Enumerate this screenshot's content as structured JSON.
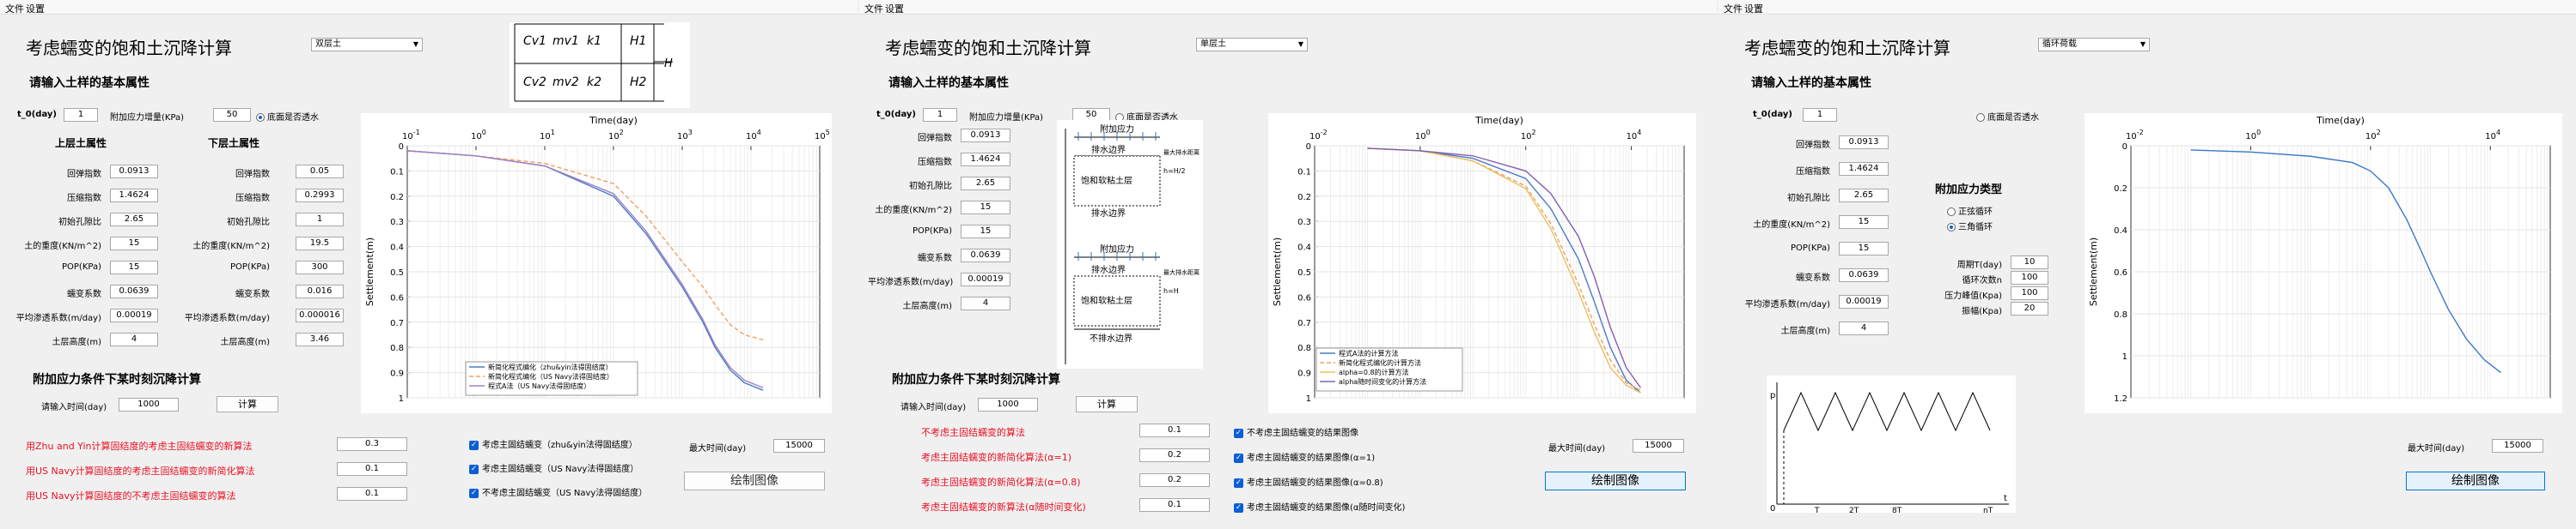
{
  "menu": [
    "文件",
    "设置"
  ],
  "p1": {
    "title": "考虑蠕变的饱和土沉降计算",
    "layer_select": "双层土",
    "sec_props": "请输入土样的基本属性",
    "t0_label": "t_0(day)",
    "t0": "1",
    "load_label": "附加应力增量(KPa)",
    "load": "50",
    "drain_label": "底面是否透水",
    "upper_hd": "上层土属性",
    "lower_hd": "下层土属性",
    "upper": [
      [
        "回弹指数",
        "0.0913"
      ],
      [
        "压缩指数",
        "1.4624"
      ],
      [
        "初始孔隙比",
        "2.65"
      ],
      [
        "土的重度(KN/m^2)",
        "15"
      ],
      [
        "POP(KPa)",
        "15"
      ],
      [
        "蠕变系数",
        "0.0639"
      ],
      [
        "平均渗透系数(m/day)",
        "0.00019"
      ],
      [
        "土层高度(m)",
        "4"
      ]
    ],
    "lower": [
      [
        "回弹指数",
        "0.05"
      ],
      [
        "压缩指数",
        "0.2993"
      ],
      [
        "初始孔隙比",
        "1"
      ],
      [
        "土的重度(KN/m^2)",
        "19.5"
      ],
      [
        "POP(KPa)",
        "300"
      ],
      [
        "蠕变系数",
        "0.016"
      ],
      [
        "平均渗透系数(m/day)",
        "0.000016"
      ],
      [
        "土层高度(m)",
        "3.46"
      ]
    ],
    "sec_time": "附加应力条件下某时刻沉降计算",
    "time_label": "请输入时间(day)",
    "time": "1000",
    "calc": "计算",
    "results": [
      [
        "用Zhu and Yin计算固结度的考虑主固结蠕变的新算法",
        "0.3"
      ],
      [
        "用US Navy计算固结度的考虑主固结蠕变的新简化算法",
        "0.1"
      ],
      [
        "用US Navy计算固结度的不考虑主固结蠕变的算法",
        "0.1"
      ]
    ],
    "checks": [
      "考虑主固结蠕变（zhu&yin法得固结度）",
      "考虑主固结蠕变（US Navy法得固结度）",
      "不考虑主固结蠕变（US Navy法得固结度）"
    ],
    "maxtime_label": "最大时间(day)",
    "maxtime": "15000",
    "draw": "绘制图像",
    "legend": [
      "新简化程式编化（zhu&yin法得固结度）",
      "新简化程式编化（US Navy法得固结度）",
      "程式A法（US Navy法得固结度）"
    ],
    "diagram": {
      "cv1": "Cv1",
      "mv1": "mv1",
      "k1": "k1",
      "h1": "H1",
      "cv2": "Cv2",
      "mv2": "mv2",
      "k2": "k2",
      "h2": "H2",
      "h": "H"
    }
  },
  "p2": {
    "title": "考虑蠕变的饱和土沉降计算",
    "layer_select": "单层土",
    "sec_props": "请输入土样的基本属性",
    "t0_label": "t_0(day)",
    "t0": "1",
    "load_label": "附加应力增量(KPa)",
    "load": "50",
    "drain_label": "底面是否透水",
    "props": [
      [
        "回弹指数",
        "0.0913"
      ],
      [
        "压缩指数",
        "1.4624"
      ],
      [
        "初始孔隙比",
        "2.65"
      ],
      [
        "土的重度(KN/m^2)",
        "15"
      ],
      [
        "POP(KPa)",
        "15"
      ],
      [
        "蠕变系数",
        "0.0639"
      ],
      [
        "平均渗透系数(m/day)",
        "0.00019"
      ],
      [
        "土层高度(m)",
        "4"
      ]
    ],
    "sec_time": "附加应力条件下某时刻沉降计算",
    "time_label": "请输入时间(day)",
    "time": "1000",
    "calc": "计算",
    "results": [
      [
        "不考虑主固结蠕变的算法",
        "0.1"
      ],
      [
        "考虑主固结蠕变的新简化算法(α=1)",
        "0.2"
      ],
      [
        "考虑主固结蠕变的新简化算法(α=0.8)",
        "0.2"
      ],
      [
        "考虑主固结蠕变的新算法(α随时间变化)",
        "0.1"
      ]
    ],
    "checks": [
      "不考虑主固结蠕变的结果图像",
      "考虑主固结蠕变的结果图像(α=1)",
      "考虑主固结蠕变的结果图像(α=0.8)",
      "考虑主固结蠕变的结果图像(α随时间变化)"
    ],
    "maxtime_label": "最大时间(day)",
    "maxtime": "15000",
    "draw": "绘制图像",
    "legend": [
      "程式A法的计算方法",
      "新简化程式编化的计算方法",
      "alpha=0.8的计算方法",
      "alpha随时间变化的计算方法"
    ],
    "sketch": {
      "load": "附加应力",
      "top": "排水边界",
      "layer": "饱和软粘土层",
      "bottom": "排水边界",
      "bottom2": "不排水边界",
      "note": "最大排水距离",
      "h1": "h=H/2",
      "h2": "h=H"
    }
  },
  "p3": {
    "title": "考虑蠕变的饱和土沉降计算",
    "layer_select": "循环荷载",
    "sec_props": "请输入土样的基本属性",
    "t0_label": "t_0(day)",
    "t0": "1",
    "drain_label": "底面是否透水",
    "props": [
      [
        "回弹指数",
        "0.0913"
      ],
      [
        "压缩指数",
        "1.4624"
      ],
      [
        "初始孔隙比",
        "2.65"
      ],
      [
        "土的重度(KN/m^2)",
        "15"
      ],
      [
        "POP(KPa)",
        "15"
      ],
      [
        "蠕变系数",
        "0.0639"
      ],
      [
        "平均渗透系数(m/day)",
        "0.00019"
      ],
      [
        "土层高度(m)",
        "4"
      ]
    ],
    "stress_type": "附加应力类型",
    "radio": [
      "正弦循环",
      "三角循环"
    ],
    "cyc": [
      [
        "周期T(day)",
        "10"
      ],
      [
        "循环次数n",
        "100"
      ],
      [
        "压力峰值(Kpa)",
        "100"
      ],
      [
        "振幅(Kpa)",
        "20"
      ]
    ],
    "maxtime_label": "最大时间(day)",
    "maxtime": "15000",
    "draw": "绘制图像",
    "wave": {
      "p": "p",
      "t": "t",
      "o": "0",
      "t1": "T",
      "t2": "2T",
      "t3": "8T",
      "t4": "nT"
    }
  },
  "chart_data": [
    {
      "type": "line",
      "xlabel": "Time(day)",
      "ylabel": "Settlement(m)",
      "xscale": "log",
      "xlim": [
        0.1,
        100000
      ],
      "ylim": [
        0,
        1
      ],
      "xticks": [
        "10^{-1}",
        "10^{0}",
        "10^{1}",
        "10^{2}",
        "10^{3}",
        "10^{4}",
        "10^{5}"
      ],
      "yticks": [
        "0",
        "0.1",
        "0.2",
        "0.3",
        "0.4",
        "0.5",
        "0.6",
        "0.7",
        "0.8",
        "0.9",
        "1"
      ],
      "series": [
        {
          "name": "新简化程式编化（zhu&yin法得固结度）",
          "color": "#4a7bc8",
          "x": [
            0.1,
            1,
            10,
            100,
            300,
            1000,
            2000,
            3000,
            5000,
            8000,
            15000
          ],
          "y": [
            0.02,
            0.04,
            0.08,
            0.2,
            0.35,
            0.56,
            0.7,
            0.8,
            0.89,
            0.94,
            0.97
          ]
        },
        {
          "name": "新简化程式编化（US Navy法得固结度）",
          "color": "#f0a060",
          "x": [
            0.1,
            1,
            10,
            100,
            300,
            1000,
            2000,
            3000,
            5000,
            8000,
            15000
          ],
          "y": [
            0.02,
            0.04,
            0.07,
            0.15,
            0.28,
            0.46,
            0.56,
            0.63,
            0.71,
            0.75,
            0.77
          ]
        },
        {
          "name": "程式A法（US Navy法得固结度）",
          "color": "#a080c8",
          "x": [
            0.1,
            1,
            10,
            100,
            300,
            1000,
            2000,
            3000,
            5000,
            8000,
            15000
          ],
          "y": [
            0.02,
            0.04,
            0.08,
            0.19,
            0.34,
            0.55,
            0.69,
            0.79,
            0.88,
            0.93,
            0.96
          ]
        }
      ]
    },
    {
      "type": "line",
      "xlabel": "Time(day)",
      "ylabel": "Settlement(m)",
      "xscale": "log",
      "xlim": [
        0.01,
        100000
      ],
      "ylim": [
        0,
        1
      ],
      "xticks": [
        "10^{-2}",
        "10^{0}",
        "10^{2}",
        "10^{4}"
      ],
      "yticks": [
        "0",
        "0.1",
        "0.2",
        "0.3",
        "0.4",
        "0.5",
        "0.6",
        "0.7",
        "0.8",
        "0.9",
        "1"
      ],
      "series": [
        {
          "name": "程式A法的计算方法",
          "color": "#4a7bc8",
          "x": [
            0.1,
            1,
            10,
            100,
            300,
            1000,
            2000,
            4000,
            8000,
            15000
          ],
          "y": [
            0.01,
            0.02,
            0.05,
            0.13,
            0.25,
            0.45,
            0.62,
            0.8,
            0.93,
            0.98
          ]
        },
        {
          "name": "新简化程式编化的计算方法",
          "color": "#f0a060",
          "x": [
            0.1,
            1,
            10,
            100,
            300,
            1000,
            2000,
            4000,
            8000,
            15000
          ],
          "y": [
            0.01,
            0.02,
            0.06,
            0.16,
            0.31,
            0.55,
            0.71,
            0.85,
            0.94,
            0.97
          ]
        },
        {
          "name": "alpha=0.8的计算方法",
          "color": "#e8c060",
          "x": [
            0.1,
            1,
            10,
            100,
            300,
            1000,
            2000,
            4000,
            8000,
            15000
          ],
          "y": [
            0.01,
            0.02,
            0.06,
            0.17,
            0.33,
            0.58,
            0.74,
            0.88,
            0.95,
            0.98
          ]
        },
        {
          "name": "alpha随时间变化的计算方法",
          "color": "#8060b0",
          "x": [
            0.1,
            1,
            10,
            100,
            300,
            1000,
            2000,
            4000,
            8000,
            15000
          ],
          "y": [
            0.01,
            0.02,
            0.04,
            0.1,
            0.19,
            0.36,
            0.52,
            0.72,
            0.88,
            0.96
          ]
        }
      ]
    },
    {
      "type": "line",
      "xlabel": "Time(day)",
      "ylabel": "Settlement(m)",
      "xscale": "log",
      "xlim": [
        0.01,
        100000
      ],
      "ylim": [
        0,
        1.2
      ],
      "xticks": [
        "10^{-2}",
        "10^{0}",
        "10^{2}",
        "10^{4}"
      ],
      "yticks": [
        "0",
        "0.2",
        "0.4",
        "0.6",
        "0.8",
        "1",
        "1.2"
      ],
      "series": [
        {
          "name": "",
          "color": "#3a78c8",
          "x": [
            0.1,
            1,
            10,
            50,
            100,
            200,
            400,
            700,
            1000,
            2000,
            4000,
            8000,
            15000
          ],
          "y": [
            0.02,
            0.03,
            0.05,
            0.08,
            0.12,
            0.2,
            0.35,
            0.5,
            0.6,
            0.78,
            0.92,
            1.02,
            1.08
          ]
        }
      ]
    }
  ]
}
